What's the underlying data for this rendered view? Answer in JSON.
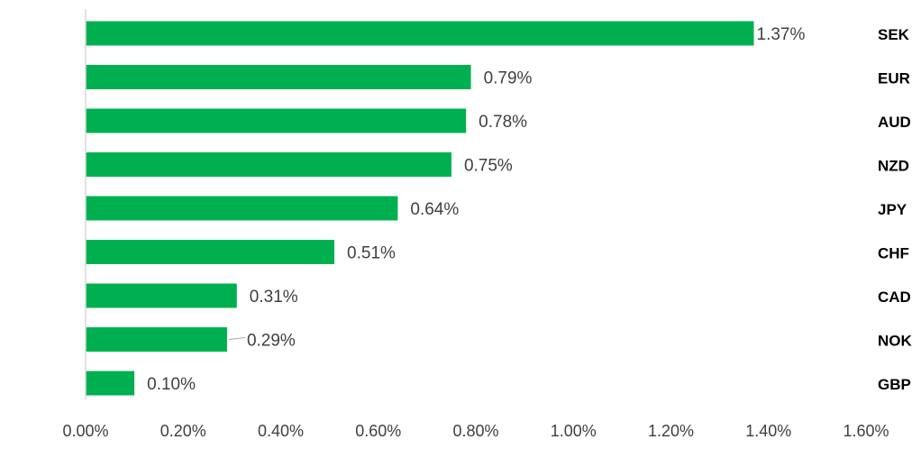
{
  "chart_data": {
    "type": "bar",
    "orientation": "horizontal",
    "title": "",
    "xlabel": "",
    "ylabel": "",
    "xlim": [
      0,
      1.6
    ],
    "x_ticks": [
      "0.00%",
      "0.20%",
      "0.40%",
      "0.60%",
      "0.80%",
      "1.00%",
      "1.20%",
      "1.40%",
      "1.60%"
    ],
    "categories": [
      "SEK",
      "EUR",
      "AUD",
      "NZD",
      "JPY",
      "CHF",
      "CAD",
      "NOK",
      "GBP"
    ],
    "values": [
      1.37,
      0.79,
      0.78,
      0.75,
      0.64,
      0.51,
      0.31,
      0.29,
      0.1
    ],
    "value_labels": [
      "1.37%",
      "0.79%",
      "0.78%",
      "0.75%",
      "0.64%",
      "0.51%",
      "0.31%",
      "0.29%",
      "0.10%"
    ],
    "category_label_position": "right",
    "grid": false,
    "legend": "none",
    "bar_color": "#00b050",
    "axis_color": "#d9d9d9",
    "text_color": "#404040"
  }
}
